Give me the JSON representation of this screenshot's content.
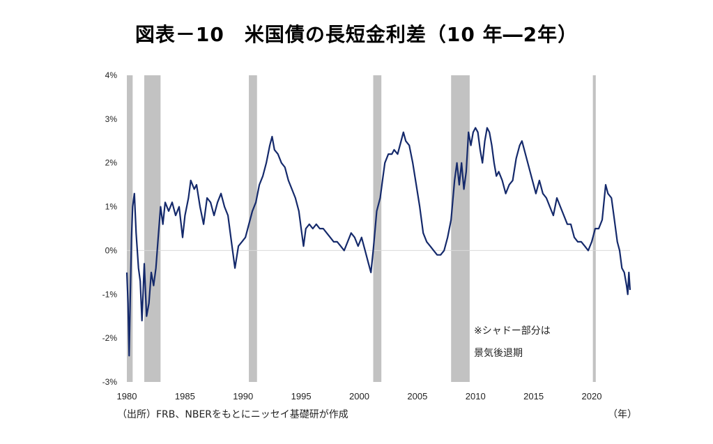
{
  "title": "図表－10　米国債の長短金利差（10 年―2年）",
  "source": "（出所）FRB、NBERをもとにニッセイ基礎研が作成",
  "unit_label": "（年）",
  "note": [
    "※シャドー部分は",
    "景気後退期"
  ],
  "colors": {
    "line": "#14296b",
    "recession": "#c2c2c2",
    "zero_line": "#d9d9d9"
  },
  "chart_data": {
    "type": "line",
    "title": "図表－10　米国債の長短金利差（10 年―2年）",
    "xlabel": "（年）",
    "ylabel": "",
    "xlim": [
      1980,
      2023.3
    ],
    "ylim": [
      -3,
      4
    ],
    "y_ticks": [
      4,
      3,
      2,
      1,
      0,
      -1,
      -2,
      -3
    ],
    "y_tick_labels": [
      "4%",
      "3%",
      "2%",
      "1%",
      "0%",
      "-1%",
      "-2%",
      "-3%"
    ],
    "x_ticks": [
      1980,
      1985,
      1990,
      1995,
      2000,
      2005,
      2010,
      2015,
      2020
    ],
    "x_tick_labels": [
      "1980",
      "1985",
      "1990",
      "1995",
      "2000",
      "2005",
      "2010",
      "2015",
      "2020"
    ],
    "grid": false,
    "recessions": [
      [
        1980.0,
        1980.5
      ],
      [
        1981.5,
        1982.9
      ],
      [
        1990.5,
        1991.2
      ],
      [
        2001.2,
        2001.9
      ],
      [
        2007.9,
        2009.5
      ],
      [
        2020.1,
        2020.35
      ]
    ],
    "series": [
      {
        "points": [
          [
            1980.0,
            -0.5
          ],
          [
            1980.1,
            -1.2
          ],
          [
            1980.2,
            -2.4
          ],
          [
            1980.3,
            -1.0
          ],
          [
            1980.4,
            0.3
          ],
          [
            1980.5,
            1.0
          ],
          [
            1980.65,
            1.3
          ],
          [
            1980.8,
            0.4
          ],
          [
            1981.0,
            -0.4
          ],
          [
            1981.15,
            -0.7
          ],
          [
            1981.3,
            -1.6
          ],
          [
            1981.5,
            -0.3
          ],
          [
            1981.7,
            -1.5
          ],
          [
            1981.9,
            -1.2
          ],
          [
            1982.1,
            -0.5
          ],
          [
            1982.3,
            -0.8
          ],
          [
            1982.5,
            -0.4
          ],
          [
            1982.7,
            0.3
          ],
          [
            1982.9,
            1.0
          ],
          [
            1983.1,
            0.6
          ],
          [
            1983.3,
            1.1
          ],
          [
            1983.6,
            0.9
          ],
          [
            1983.9,
            1.1
          ],
          [
            1984.2,
            0.8
          ],
          [
            1984.5,
            1.0
          ],
          [
            1984.8,
            0.3
          ],
          [
            1985.0,
            0.8
          ],
          [
            1985.3,
            1.2
          ],
          [
            1985.5,
            1.6
          ],
          [
            1985.8,
            1.4
          ],
          [
            1986.0,
            1.5
          ],
          [
            1986.3,
            1.0
          ],
          [
            1986.6,
            0.6
          ],
          [
            1986.9,
            1.2
          ],
          [
            1987.2,
            1.1
          ],
          [
            1987.5,
            0.8
          ],
          [
            1987.8,
            1.1
          ],
          [
            1988.1,
            1.3
          ],
          [
            1988.4,
            1.0
          ],
          [
            1988.7,
            0.8
          ],
          [
            1988.9,
            0.4
          ],
          [
            1989.1,
            0.0
          ],
          [
            1989.3,
            -0.4
          ],
          [
            1989.6,
            0.1
          ],
          [
            1989.9,
            0.2
          ],
          [
            1990.2,
            0.3
          ],
          [
            1990.5,
            0.6
          ],
          [
            1990.8,
            0.9
          ],
          [
            1991.1,
            1.1
          ],
          [
            1991.4,
            1.5
          ],
          [
            1991.7,
            1.7
          ],
          [
            1992.0,
            2.0
          ],
          [
            1992.3,
            2.4
          ],
          [
            1992.5,
            2.6
          ],
          [
            1992.7,
            2.3
          ],
          [
            1993.0,
            2.2
          ],
          [
            1993.3,
            2.0
          ],
          [
            1993.6,
            1.9
          ],
          [
            1993.9,
            1.6
          ],
          [
            1994.2,
            1.4
          ],
          [
            1994.5,
            1.2
          ],
          [
            1994.8,
            0.9
          ],
          [
            1995.0,
            0.5
          ],
          [
            1995.2,
            0.1
          ],
          [
            1995.4,
            0.5
          ],
          [
            1995.7,
            0.6
          ],
          [
            1996.0,
            0.5
          ],
          [
            1996.3,
            0.6
          ],
          [
            1996.6,
            0.5
          ],
          [
            1996.9,
            0.5
          ],
          [
            1997.2,
            0.4
          ],
          [
            1997.5,
            0.3
          ],
          [
            1997.8,
            0.2
          ],
          [
            1998.1,
            0.2
          ],
          [
            1998.4,
            0.1
          ],
          [
            1998.7,
            0.0
          ],
          [
            1999.0,
            0.2
          ],
          [
            1999.3,
            0.4
          ],
          [
            1999.6,
            0.3
          ],
          [
            1999.9,
            0.1
          ],
          [
            2000.2,
            0.3
          ],
          [
            2000.5,
            0.0
          ],
          [
            2000.8,
            -0.3
          ],
          [
            2001.0,
            -0.5
          ],
          [
            2001.2,
            0.0
          ],
          [
            2001.5,
            0.9
          ],
          [
            2001.8,
            1.2
          ],
          [
            2002.0,
            1.6
          ],
          [
            2002.2,
            2.0
          ],
          [
            2002.5,
            2.2
          ],
          [
            2002.8,
            2.2
          ],
          [
            2003.0,
            2.3
          ],
          [
            2003.3,
            2.2
          ],
          [
            2003.6,
            2.5
          ],
          [
            2003.8,
            2.7
          ],
          [
            2004.0,
            2.5
          ],
          [
            2004.3,
            2.4
          ],
          [
            2004.6,
            2.0
          ],
          [
            2004.9,
            1.5
          ],
          [
            2005.2,
            1.0
          ],
          [
            2005.5,
            0.4
          ],
          [
            2005.8,
            0.2
          ],
          [
            2006.1,
            0.1
          ],
          [
            2006.4,
            0.0
          ],
          [
            2006.7,
            -0.1
          ],
          [
            2007.0,
            -0.1
          ],
          [
            2007.3,
            0.0
          ],
          [
            2007.6,
            0.3
          ],
          [
            2007.9,
            0.7
          ],
          [
            2008.2,
            1.6
          ],
          [
            2008.4,
            2.0
          ],
          [
            2008.6,
            1.5
          ],
          [
            2008.8,
            2.0
          ],
          [
            2009.0,
            1.4
          ],
          [
            2009.2,
            1.8
          ],
          [
            2009.4,
            2.7
          ],
          [
            2009.6,
            2.4
          ],
          [
            2009.8,
            2.7
          ],
          [
            2010.0,
            2.8
          ],
          [
            2010.2,
            2.7
          ],
          [
            2010.4,
            2.3
          ],
          [
            2010.6,
            2.0
          ],
          [
            2010.8,
            2.5
          ],
          [
            2011.0,
            2.8
          ],
          [
            2011.2,
            2.7
          ],
          [
            2011.4,
            2.4
          ],
          [
            2011.6,
            2.0
          ],
          [
            2011.8,
            1.7
          ],
          [
            2012.0,
            1.8
          ],
          [
            2012.3,
            1.6
          ],
          [
            2012.6,
            1.3
          ],
          [
            2012.9,
            1.5
          ],
          [
            2013.2,
            1.6
          ],
          [
            2013.5,
            2.1
          ],
          [
            2013.8,
            2.4
          ],
          [
            2014.0,
            2.5
          ],
          [
            2014.3,
            2.2
          ],
          [
            2014.6,
            1.9
          ],
          [
            2014.9,
            1.6
          ],
          [
            2015.2,
            1.3
          ],
          [
            2015.5,
            1.6
          ],
          [
            2015.8,
            1.3
          ],
          [
            2016.1,
            1.2
          ],
          [
            2016.4,
            1.0
          ],
          [
            2016.7,
            0.8
          ],
          [
            2017.0,
            1.2
          ],
          [
            2017.3,
            1.0
          ],
          [
            2017.6,
            0.8
          ],
          [
            2017.9,
            0.6
          ],
          [
            2018.2,
            0.6
          ],
          [
            2018.5,
            0.3
          ],
          [
            2018.8,
            0.2
          ],
          [
            2019.1,
            0.2
          ],
          [
            2019.4,
            0.1
          ],
          [
            2019.7,
            0.0
          ],
          [
            2020.0,
            0.2
          ],
          [
            2020.3,
            0.5
          ],
          [
            2020.6,
            0.5
          ],
          [
            2020.9,
            0.7
          ],
          [
            2021.2,
            1.5
          ],
          [
            2021.4,
            1.3
          ],
          [
            2021.7,
            1.2
          ],
          [
            2021.9,
            0.8
          ],
          [
            2022.2,
            0.2
          ],
          [
            2022.4,
            0.0
          ],
          [
            2022.6,
            -0.4
          ],
          [
            2022.8,
            -0.5
          ],
          [
            2023.0,
            -0.8
          ],
          [
            2023.1,
            -1.0
          ],
          [
            2023.2,
            -0.5
          ],
          [
            2023.3,
            -0.9
          ]
        ]
      }
    ]
  }
}
